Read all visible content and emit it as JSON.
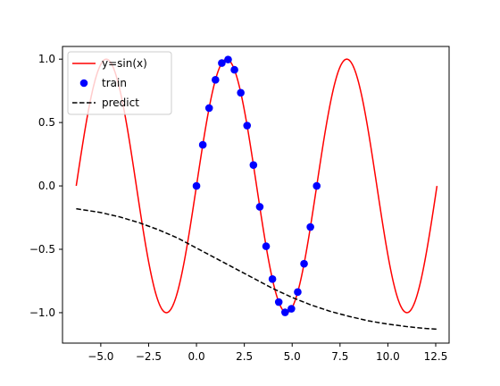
{
  "chart_data": {
    "type": "line",
    "title": "",
    "xlabel": "",
    "ylabel": "",
    "xlim": [
      -7.0,
      13.2
    ],
    "ylim": [
      -1.24,
      1.1
    ],
    "x_ticks": [
      -5.0,
      -2.5,
      0.0,
      2.5,
      5.0,
      7.5,
      10.0,
      12.5
    ],
    "x_tick_labels": [
      "−5.0",
      "−2.5",
      "0.0",
      "2.5",
      "5.0",
      "7.5",
      "10.0",
      "12.5"
    ],
    "y_ticks": [
      -1.0,
      -0.5,
      0.0,
      0.5,
      1.0
    ],
    "y_tick_labels": [
      "−1.0",
      "−0.5",
      "0.0",
      "0.5",
      "1.0"
    ],
    "grid": false,
    "legend_position": "top-left",
    "series": [
      {
        "name": "y=sin(x)",
        "kind": "line",
        "color": "#ff0000",
        "function": "sin",
        "x_range": [
          -6.283,
          12.566
        ]
      },
      {
        "name": "train",
        "kind": "scatter",
        "color": "#0000ff",
        "x": [
          0.0,
          0.331,
          0.661,
          0.992,
          1.323,
          1.653,
          1.984,
          2.315,
          2.645,
          2.976,
          3.307,
          3.638,
          3.968,
          4.299,
          4.63,
          4.96,
          5.291,
          5.622,
          5.952,
          6.283
        ],
        "y": [
          0.0,
          0.324,
          0.614,
          0.837,
          0.969,
          0.997,
          0.916,
          0.735,
          0.476,
          0.165,
          -0.165,
          -0.476,
          -0.735,
          -0.916,
          -0.997,
          -0.969,
          -0.837,
          -0.614,
          -0.324,
          0.0
        ]
      },
      {
        "name": "predict",
        "kind": "line",
        "color": "#000000",
        "dash": "dashed",
        "x": [
          -6.283,
          -5.0,
          -4.0,
          -3.0,
          -2.0,
          -1.0,
          0.0,
          1.0,
          2.0,
          3.0,
          4.0,
          5.0,
          6.0,
          7.0,
          8.0,
          9.0,
          10.0,
          11.0,
          12.0,
          12.566
        ],
        "y": [
          -0.18,
          -0.21,
          -0.245,
          -0.29,
          -0.345,
          -0.41,
          -0.49,
          -0.57,
          -0.65,
          -0.73,
          -0.81,
          -0.88,
          -0.94,
          -0.99,
          -1.03,
          -1.065,
          -1.09,
          -1.11,
          -1.125,
          -1.13
        ]
      }
    ]
  }
}
